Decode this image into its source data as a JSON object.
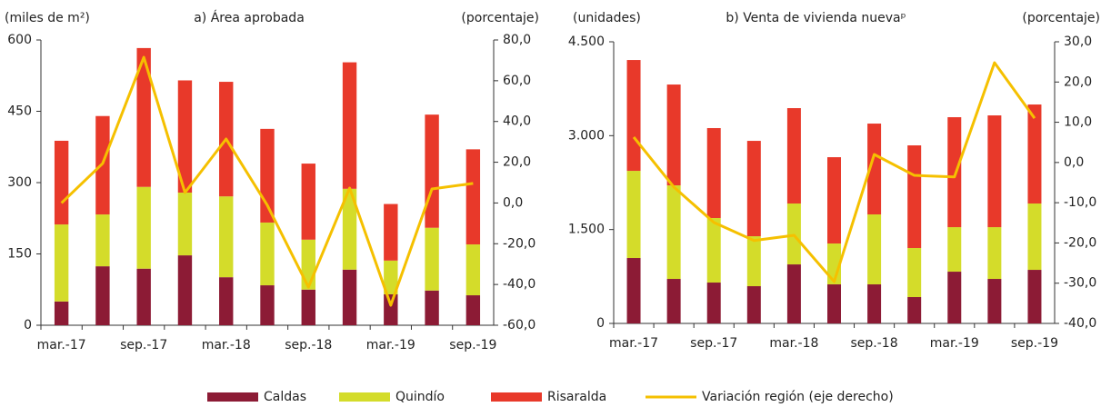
{
  "chart_data": [
    {
      "type": "bar",
      "stacked": true,
      "title": "a) Área aprobada",
      "y_label": "(miles de m²)",
      "y2_label": "(porcentaje)",
      "categories": [
        "mar.-17",
        null,
        "sep.-17",
        null,
        "mar.-18",
        null,
        "sep.-18",
        null,
        "mar.-19",
        null,
        "sep.-19"
      ],
      "ylim": [
        0,
        600
      ],
      "yticks": [
        0,
        150,
        300,
        450,
        600
      ],
      "y2lim": [
        -60,
        80
      ],
      "y2ticks": [
        {
          "value": -60,
          "label": "-60,0"
        },
        {
          "value": -40,
          "label": "-40,0"
        },
        {
          "value": -20,
          "label": "-20,0"
        },
        {
          "value": 0,
          "label": "0,0"
        },
        {
          "value": 20,
          "label": "20,0"
        },
        {
          "value": 40,
          "label": "40,0"
        },
        {
          "value": 60,
          "label": "60,0"
        },
        {
          "value": 80,
          "label": "80,0"
        }
      ],
      "series": [
        {
          "name": "Caldas",
          "color": "#8c1b35",
          "values": [
            50,
            124,
            119,
            147,
            101,
            84,
            75,
            117,
            65,
            73,
            63
          ]
        },
        {
          "name": "Quindío",
          "color": "#d4dc2a",
          "values": [
            162,
            109,
            172,
            132,
            170,
            132,
            105,
            170,
            71,
            132,
            107
          ]
        },
        {
          "name": "Risaralda",
          "color": "#e8392a",
          "values": [
            176,
            207,
            292,
            236,
            241,
            197,
            160,
            266,
            119,
            238,
            200
          ]
        },
        {
          "name": "Variación región (eje derecho)",
          "color": "#f5c000",
          "type": "line",
          "axis": "y2",
          "values": [
            0,
            19.4,
            71.5,
            5.1,
            31.4,
            -1.1,
            -41.3,
            7.3,
            -50.2,
            6.9,
            9.6
          ]
        }
      ]
    },
    {
      "type": "bar",
      "stacked": true,
      "title": "b) Venta de vivienda nuevaᵖ",
      "y_label": "(unidades)",
      "y2_label": "(porcentaje)",
      "categories": [
        "mar.-17",
        null,
        "sep.-17",
        null,
        "mar.-18",
        null,
        "sep.-18",
        null,
        "mar.-19",
        null,
        "sep.-19"
      ],
      "ylim": [
        0,
        4500
      ],
      "yticks": [
        0,
        {
          "value": 1500,
          "label": "1.500"
        },
        {
          "value": 3000,
          "label": "3.000"
        },
        {
          "value": 4500,
          "label": "4.500"
        }
      ],
      "y2lim": [
        -40,
        30
      ],
      "y2ticks": [
        {
          "value": -40,
          "label": "-40,0"
        },
        {
          "value": -30,
          "label": "-30,0"
        },
        {
          "value": -20,
          "label": "-20,0"
        },
        {
          "value": -10,
          "label": "-10,0"
        },
        {
          "value": 0,
          "label": "0,0"
        },
        {
          "value": 10,
          "label": "10,0"
        },
        {
          "value": 20,
          "label": "20,0"
        },
        {
          "value": 30,
          "label": "30,0"
        }
      ],
      "series": [
        {
          "name": "Caldas",
          "color": "#8c1b35",
          "values": [
            1045,
            711,
            653,
            595,
            943,
            624,
            624,
            421,
            827,
            711,
            856
          ]
        },
        {
          "name": "Quindío",
          "color": "#d4dc2a",
          "values": [
            1393,
            1495,
            1031,
            798,
            973,
            653,
            1118,
            784,
            711,
            827,
            1060
          ]
        },
        {
          "name": "Risaralda",
          "color": "#e8392a",
          "values": [
            1771,
            1611,
            1437,
            1524,
            1524,
            1379,
            1451,
            1640,
            1757,
            1786,
            1582
          ]
        },
        {
          "name": "Variación región (eje derecho)",
          "color": "#f5c000",
          "type": "line",
          "axis": "y2",
          "values": [
            6.3,
            -6.1,
            -14.9,
            -19.4,
            -18.1,
            -29.6,
            2.0,
            -3.2,
            -3.6,
            24.8,
            11.0
          ]
        }
      ]
    }
  ]
}
